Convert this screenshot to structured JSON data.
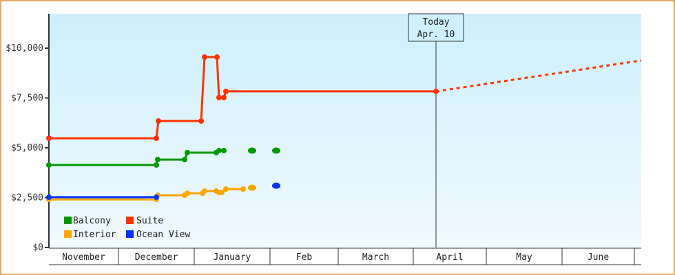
{
  "chart_data": {
    "type": "line",
    "title": "",
    "xlabel": "",
    "ylabel": "",
    "ylim": [
      0,
      11500
    ],
    "yticks": [
      {
        "value": 0,
        "label": "$0"
      },
      {
        "value": 2500,
        "label": "$2,500"
      },
      {
        "value": 5000,
        "label": "$5,000"
      },
      {
        "value": 7500,
        "label": "$7,500"
      },
      {
        "value": 10000,
        "label": "$10,000"
      }
    ],
    "x_categories": [
      "November",
      "December",
      "January",
      "Feb",
      "March",
      "April",
      "May",
      "June"
    ],
    "grid": false,
    "legend_position": "bottom-left inside",
    "annotation": {
      "line1": "Today",
      "line2": "Apr. 10"
    },
    "series": [
      {
        "name": "Balcony",
        "color": "#009900",
        "points": [
          {
            "x": "Nov 1",
            "y": 4140
          },
          {
            "x": "Dec 15",
            "y": 4140
          },
          {
            "x": "Dec 16",
            "y": 4410
          },
          {
            "x": "Dec 27",
            "y": 4410
          },
          {
            "x": "Dec 28",
            "y": 4760
          },
          {
            "x": "Jan 9",
            "y": 4760
          },
          {
            "x": "Jan 10",
            "y": 4860
          },
          {
            "x": "Jan 12",
            "y": 4860
          }
        ],
        "isolated_points": [
          {
            "x": "Jan 23",
            "y": 4860
          },
          {
            "x": "Feb 2",
            "y": 4860
          }
        ]
      },
      {
        "name": "Suite",
        "color": "#ff3300",
        "points": [
          {
            "x": "Nov 1",
            "y": 5480
          },
          {
            "x": "Dec 15",
            "y": 5480
          },
          {
            "x": "Dec 16",
            "y": 6345
          },
          {
            "x": "Jan 3",
            "y": 6345
          },
          {
            "x": "Jan 4",
            "y": 9550
          },
          {
            "x": "Jan 9",
            "y": 9550
          },
          {
            "x": "Jan 10",
            "y": 7520
          },
          {
            "x": "Jan 12",
            "y": 7520
          },
          {
            "x": "Jan 13",
            "y": 7830
          },
          {
            "x": "Apr 10",
            "y": 7830
          }
        ],
        "projection": [
          {
            "x": "Apr 10",
            "y": 7830
          },
          {
            "x": "Jul 1",
            "y": 9380
          }
        ]
      },
      {
        "name": "Interior",
        "color": "#ffa500",
        "points": [
          {
            "x": "Nov 1",
            "y": 2410
          },
          {
            "x": "Dec 15",
            "y": 2410
          },
          {
            "x": "Dec 16",
            "y": 2620
          },
          {
            "x": "Dec 27",
            "y": 2620
          },
          {
            "x": "Dec 28",
            "y": 2720
          },
          {
            "x": "Jan 3",
            "y": 2720
          },
          {
            "x": "Jan 4",
            "y": 2830
          },
          {
            "x": "Jan 9",
            "y": 2830
          },
          {
            "x": "Jan 10",
            "y": 2760
          },
          {
            "x": "Jan 11",
            "y": 2760
          },
          {
            "x": "Jan 13",
            "y": 2930
          },
          {
            "x": "Jan 20",
            "y": 2930
          }
        ],
        "isolated_points": [
          {
            "x": "Jan 23",
            "y": 3000
          }
        ]
      },
      {
        "name": "Ocean View",
        "color": "#0033ff",
        "points": [
          {
            "x": "Nov 1",
            "y": 2520
          },
          {
            "x": "Dec 15",
            "y": 2520
          }
        ],
        "isolated_points": [
          {
            "x": "Feb 2",
            "y": 3100
          }
        ]
      }
    ]
  },
  "legend": [
    {
      "label": "Balcony",
      "color": "#009900"
    },
    {
      "label": "Suite",
      "color": "#ff3300"
    },
    {
      "label": "Interior",
      "color": "#ffa500"
    },
    {
      "label": "Ocean View",
      "color": "#0033ff"
    }
  ],
  "today": {
    "line1": "Today",
    "line2": "Apr. 10"
  },
  "colors": {
    "frame": "#e8a862",
    "bg_top": "#cdf0fc",
    "bg_bottom": "#f0f9fe",
    "axis": "#333333"
  }
}
